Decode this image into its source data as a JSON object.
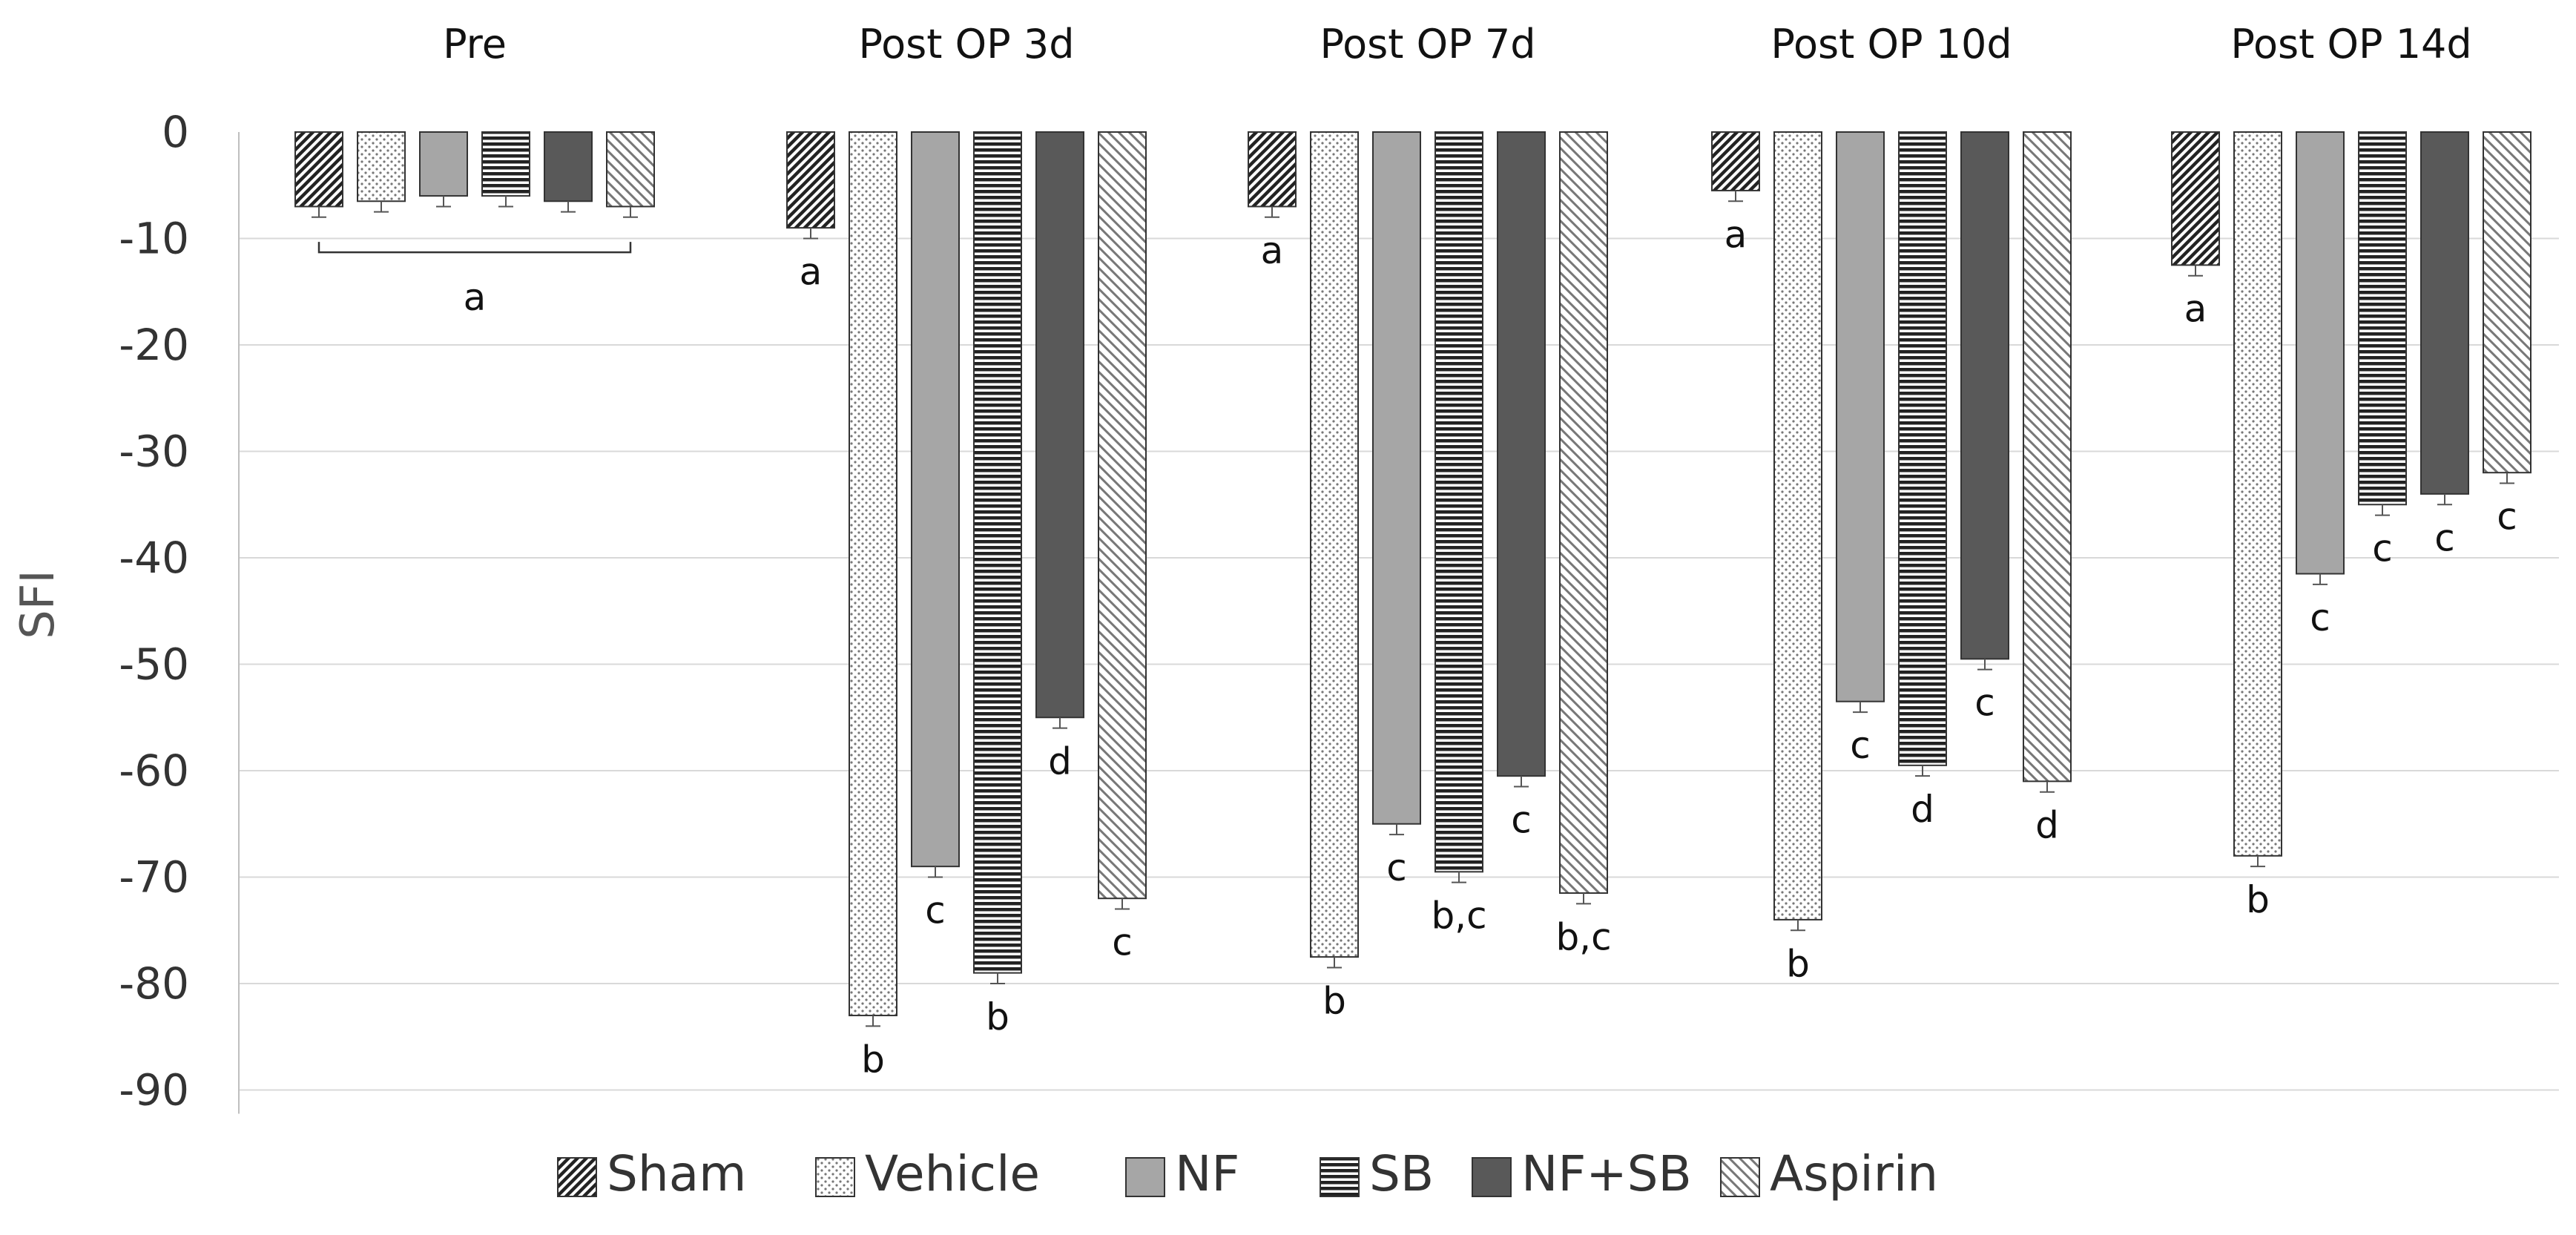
{
  "chart_data": {
    "type": "bar",
    "title": "",
    "xlabel": "",
    "ylabel": "SFI",
    "ylim": [
      -90,
      0
    ],
    "yticks": [
      0,
      -10,
      -20,
      -30,
      -40,
      -50,
      -60,
      -70,
      -80,
      -90
    ],
    "grid": true,
    "legend_position": "bottom",
    "categories": [
      "Pre",
      "Post OP 3d",
      "Post OP 7d",
      "Post OP 10d",
      "Post OP 14d"
    ],
    "series": [
      {
        "name": "Sham",
        "pattern": "diag-back",
        "color": "#222222",
        "values": [
          -7,
          -9,
          -7,
          -5.5,
          -12.5
        ],
        "errors": [
          1,
          1,
          1,
          1,
          1
        ],
        "labels": [
          "",
          "a",
          "a",
          "a",
          "a"
        ]
      },
      {
        "name": "Vehicle",
        "pattern": "dots",
        "color": "#888888",
        "values": [
          -6.5,
          -83,
          -77.5,
          -74,
          -68
        ],
        "errors": [
          1,
          1,
          1,
          1,
          1
        ],
        "labels": [
          "",
          "b",
          "b",
          "b",
          "b"
        ]
      },
      {
        "name": "NF",
        "pattern": "solid-light",
        "color": "#a6a6a6",
        "values": [
          -6,
          -69,
          -65,
          -53.5,
          -41.5
        ],
        "errors": [
          1,
          1,
          1,
          1,
          1
        ],
        "labels": [
          "",
          "c",
          "c",
          "c",
          "c"
        ]
      },
      {
        "name": "SB",
        "pattern": "horizontal-lines",
        "color": "#222222",
        "values": [
          -6,
          -79,
          -69.5,
          -59.5,
          -35
        ],
        "errors": [
          1,
          1,
          1,
          1,
          1
        ],
        "labels": [
          "",
          "b",
          "b,c",
          "d",
          "c"
        ]
      },
      {
        "name": "NF+SB",
        "pattern": "solid-dark",
        "color": "#595959",
        "values": [
          -6.5,
          -55,
          -60.5,
          -49.5,
          -34
        ],
        "errors": [
          1,
          1,
          1,
          1,
          1
        ],
        "labels": [
          "",
          "d",
          "c",
          "c",
          "c"
        ]
      },
      {
        "name": "Aspirin",
        "pattern": "diag-fwd",
        "color": "#777777",
        "values": [
          -7,
          -72,
          -71.5,
          -61,
          -32
        ],
        "errors": [
          1,
          1,
          1,
          1,
          1
        ],
        "labels": [
          "",
          "c",
          "b,c",
          "d",
          "c"
        ]
      }
    ],
    "annotations": [
      {
        "group": "Pre",
        "text": "a",
        "type": "bracket-all-series"
      }
    ]
  }
}
